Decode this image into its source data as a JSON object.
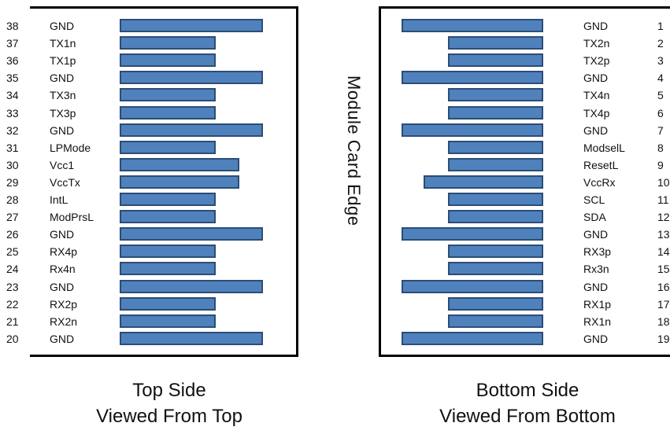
{
  "edge_label": "Module Card Edge",
  "left": {
    "caption_line1": "Top Side",
    "caption_line2": "Viewed From Top",
    "pins": [
      {
        "num": "38",
        "name": "GND",
        "pad": "long"
      },
      {
        "num": "37",
        "name": "TX1n",
        "pad": "short"
      },
      {
        "num": "36",
        "name": "TX1p",
        "pad": "short"
      },
      {
        "num": "35",
        "name": "GND",
        "pad": "long"
      },
      {
        "num": "34",
        "name": "TX3n",
        "pad": "short"
      },
      {
        "num": "33",
        "name": "TX3p",
        "pad": "short"
      },
      {
        "num": "32",
        "name": "GND",
        "pad": "long"
      },
      {
        "num": "31",
        "name": "LPMode",
        "pad": "short"
      },
      {
        "num": "30",
        "name": "Vcc1",
        "pad": "medium"
      },
      {
        "num": "29",
        "name": "VccTx",
        "pad": "medium"
      },
      {
        "num": "28",
        "name": "IntL",
        "pad": "short"
      },
      {
        "num": "27",
        "name": "ModPrsL",
        "pad": "short"
      },
      {
        "num": "26",
        "name": "GND",
        "pad": "long"
      },
      {
        "num": "25",
        "name": "RX4p",
        "pad": "short"
      },
      {
        "num": "24",
        "name": "Rx4n",
        "pad": "short"
      },
      {
        "num": "23",
        "name": "GND",
        "pad": "long"
      },
      {
        "num": "22",
        "name": "RX2p",
        "pad": "short"
      },
      {
        "num": "21",
        "name": "RX2n",
        "pad": "short"
      },
      {
        "num": "20",
        "name": "GND",
        "pad": "long"
      }
    ]
  },
  "right": {
    "caption_line1": "Bottom Side",
    "caption_line2": "Viewed From Bottom",
    "pins": [
      {
        "num": "1",
        "name": "GND",
        "pad": "long"
      },
      {
        "num": "2",
        "name": "TX2n",
        "pad": "short"
      },
      {
        "num": "3",
        "name": "TX2p",
        "pad": "short"
      },
      {
        "num": "4",
        "name": "GND",
        "pad": "long"
      },
      {
        "num": "5",
        "name": "TX4n",
        "pad": "short"
      },
      {
        "num": "6",
        "name": "TX4p",
        "pad": "short"
      },
      {
        "num": "7",
        "name": "GND",
        "pad": "long"
      },
      {
        "num": "8",
        "name": "ModselL",
        "pad": "short"
      },
      {
        "num": "9",
        "name": "ResetL",
        "pad": "short"
      },
      {
        "num": "10",
        "name": "VccRx",
        "pad": "medium"
      },
      {
        "num": "11",
        "name": "SCL",
        "pad": "short"
      },
      {
        "num": "12",
        "name": "SDA",
        "pad": "short"
      },
      {
        "num": "13",
        "name": "GND",
        "pad": "long"
      },
      {
        "num": "14",
        "name": "RX3p",
        "pad": "short"
      },
      {
        "num": "15",
        "name": "Rx3n",
        "pad": "short"
      },
      {
        "num": "16",
        "name": "GND",
        "pad": "long"
      },
      {
        "num": "17",
        "name": "RX1p",
        "pad": "short"
      },
      {
        "num": "18",
        "name": "RX1n",
        "pad": "short"
      },
      {
        "num": "19",
        "name": "GND",
        "pad": "long"
      }
    ]
  },
  "colors": {
    "pad_fill": "#4f81bd",
    "pad_border": "#2c4d75",
    "outline": "#000000"
  }
}
